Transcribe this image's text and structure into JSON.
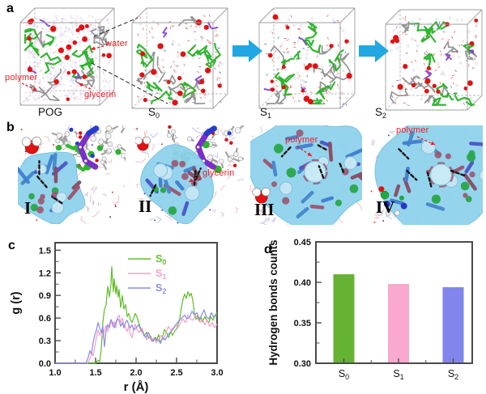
{
  "figure": {
    "panels": {
      "a": {
        "label": "a",
        "boxes": [
          {
            "base": "POG",
            "sub": ""
          },
          {
            "base": "S",
            "sub": "0"
          },
          {
            "base": "S",
            "sub": "1"
          },
          {
            "base": "S",
            "sub": "2"
          }
        ],
        "annotations": {
          "water": "water",
          "polymer": "polymer",
          "glycerin": "glycerin"
        },
        "arrow_color": "#22a7e3"
      },
      "b": {
        "label": "b",
        "views": [
          {
            "numeral": "I",
            "annotation": ""
          },
          {
            "numeral": "II",
            "annotation": "glycerin"
          },
          {
            "numeral": "III",
            "annotation": "polymer"
          },
          {
            "numeral": "IV",
            "annotation": "polymer"
          }
        ]
      },
      "c": {
        "label": "c"
      },
      "d": {
        "label": "d"
      }
    }
  },
  "chart_data": [
    {
      "type": "line",
      "panel": "c",
      "title": "",
      "xlabel": "r (Å)",
      "ylabel": "g (r)",
      "xlim": [
        1.0,
        3.0
      ],
      "ylim": [
        0.0,
        1.6
      ],
      "xticks": [
        1.0,
        1.5,
        2.0,
        2.5,
        3.0
      ],
      "xticklabels": [
        "1.0",
        "1.5",
        "2.0",
        "2.5",
        "3.0"
      ],
      "yticks": [
        0.0,
        0.3,
        0.6,
        0.9,
        1.2,
        1.5
      ],
      "yticklabels": [
        "0.0",
        "0.3",
        "0.6",
        "0.9",
        "1.2",
        "1.5"
      ],
      "grid": false,
      "legend_position": "top-center",
      "series": [
        {
          "name": "S0",
          "label_base": "S",
          "label_sub": "0",
          "color": "#63bf2d",
          "points": [
            [
              1.0,
              0
            ],
            [
              1.4,
              0
            ],
            [
              1.5,
              0
            ],
            [
              1.53,
              0.04
            ],
            [
              1.55,
              0.02
            ],
            [
              1.57,
              0.18
            ],
            [
              1.59,
              0.55
            ],
            [
              1.61,
              0.72
            ],
            [
              1.63,
              0.78
            ],
            [
              1.65,
              1.02
            ],
            [
              1.67,
              0.88
            ],
            [
              1.69,
              1.06
            ],
            [
              1.7,
              1.28
            ],
            [
              1.71,
              1.1
            ],
            [
              1.72,
              0.95
            ],
            [
              1.73,
              1.12
            ],
            [
              1.75,
              0.92
            ],
            [
              1.76,
              1.03
            ],
            [
              1.78,
              0.88
            ],
            [
              1.79,
              0.98
            ],
            [
              1.81,
              0.74
            ],
            [
              1.83,
              0.9
            ],
            [
              1.85,
              0.72
            ],
            [
              1.87,
              0.78
            ],
            [
              1.89,
              0.62
            ],
            [
              1.91,
              0.66
            ],
            [
              1.93,
              0.58
            ],
            [
              1.95,
              0.54
            ],
            [
              1.97,
              0.6
            ],
            [
              1.99,
              0.66
            ],
            [
              2.01,
              0.62
            ],
            [
              2.03,
              0.55
            ],
            [
              2.05,
              0.48
            ],
            [
              2.08,
              0.42
            ],
            [
              2.1,
              0.36
            ],
            [
              2.13,
              0.41
            ],
            [
              2.15,
              0.33
            ],
            [
              2.18,
              0.36
            ],
            [
              2.2,
              0.29
            ],
            [
              2.23,
              0.34
            ],
            [
              2.25,
              0.3
            ],
            [
              2.28,
              0.38
            ],
            [
              2.3,
              0.26
            ],
            [
              2.33,
              0.36
            ],
            [
              2.35,
              0.45
            ],
            [
              2.38,
              0.4
            ],
            [
              2.4,
              0.34
            ],
            [
              2.43,
              0.42
            ],
            [
              2.45,
              0.37
            ],
            [
              2.48,
              0.43
            ],
            [
              2.5,
              0.46
            ],
            [
              2.52,
              0.52
            ],
            [
              2.54,
              0.6
            ],
            [
              2.56,
              0.75
            ],
            [
              2.58,
              0.85
            ],
            [
              2.6,
              0.92
            ],
            [
              2.62,
              0.86
            ],
            [
              2.64,
              0.95
            ],
            [
              2.66,
              0.89
            ],
            [
              2.68,
              0.93
            ],
            [
              2.7,
              0.84
            ],
            [
              2.72,
              0.66
            ],
            [
              2.74,
              0.58
            ],
            [
              2.76,
              0.63
            ],
            [
              2.78,
              0.56
            ],
            [
              2.8,
              0.61
            ],
            [
              2.82,
              0.55
            ],
            [
              2.85,
              0.62
            ],
            [
              2.87,
              0.57
            ],
            [
              2.9,
              0.54
            ],
            [
              2.92,
              0.62
            ],
            [
              2.95,
              0.57
            ],
            [
              2.97,
              0.63
            ],
            [
              3.0,
              0.67
            ]
          ]
        },
        {
          "name": "S1",
          "label_base": "S",
          "label_sub": "1",
          "color": "#f8a0ca",
          "points": [
            [
              1.0,
              0
            ],
            [
              1.4,
              0
            ],
            [
              1.43,
              0.06
            ],
            [
              1.45,
              0.13
            ],
            [
              1.47,
              0.1
            ],
            [
              1.49,
              0.22
            ],
            [
              1.51,
              0.34
            ],
            [
              1.53,
              0.44
            ],
            [
              1.55,
              0.37
            ],
            [
              1.57,
              0.42
            ],
            [
              1.59,
              0.34
            ],
            [
              1.61,
              0.44
            ],
            [
              1.63,
              0.5
            ],
            [
              1.65,
              0.42
            ],
            [
              1.67,
              0.52
            ],
            [
              1.69,
              0.57
            ],
            [
              1.71,
              0.49
            ],
            [
              1.73,
              0.55
            ],
            [
              1.75,
              0.47
            ],
            [
              1.77,
              0.61
            ],
            [
              1.79,
              0.64
            ],
            [
              1.81,
              0.54
            ],
            [
              1.83,
              0.6
            ],
            [
              1.85,
              0.51
            ],
            [
              1.87,
              0.47
            ],
            [
              1.89,
              0.42
            ],
            [
              1.91,
              0.5
            ],
            [
              1.93,
              0.38
            ],
            [
              1.95,
              0.34
            ],
            [
              1.97,
              0.44
            ],
            [
              1.99,
              0.52
            ],
            [
              2.01,
              0.45
            ],
            [
              2.04,
              0.41
            ],
            [
              2.07,
              0.47
            ],
            [
              2.1,
              0.39
            ],
            [
              2.13,
              0.31
            ],
            [
              2.16,
              0.37
            ],
            [
              2.19,
              0.29
            ],
            [
              2.22,
              0.34
            ],
            [
              2.25,
              0.27
            ],
            [
              2.28,
              0.32
            ],
            [
              2.31,
              0.37
            ],
            [
              2.34,
              0.31
            ],
            [
              2.37,
              0.41
            ],
            [
              2.4,
              0.49
            ],
            [
              2.43,
              0.44
            ],
            [
              2.46,
              0.47
            ],
            [
              2.49,
              0.51
            ],
            [
              2.52,
              0.47
            ],
            [
              2.55,
              0.54
            ],
            [
              2.58,
              0.59
            ],
            [
              2.61,
              0.54
            ],
            [
              2.64,
              0.64
            ],
            [
              2.67,
              0.59
            ],
            [
              2.7,
              0.57
            ],
            [
              2.73,
              0.64
            ],
            [
              2.76,
              0.59
            ],
            [
              2.79,
              0.54
            ],
            [
              2.82,
              0.59
            ],
            [
              2.85,
              0.51
            ],
            [
              2.88,
              0.57
            ],
            [
              2.91,
              0.49
            ],
            [
              2.94,
              0.54
            ],
            [
              2.97,
              0.47
            ],
            [
              3.0,
              0.52
            ]
          ]
        },
        {
          "name": "S2",
          "label_base": "S",
          "label_sub": "2",
          "color": "#8a8fe8",
          "points": [
            [
              1.0,
              0
            ],
            [
              1.38,
              0
            ],
            [
              1.41,
              0.08
            ],
            [
              1.43,
              0.17
            ],
            [
              1.45,
              0.12
            ],
            [
              1.47,
              0.28
            ],
            [
              1.49,
              0.37
            ],
            [
              1.51,
              0.44
            ],
            [
              1.53,
              0.54
            ],
            [
              1.55,
              0.47
            ],
            [
              1.57,
              0.41
            ],
            [
              1.59,
              0.49
            ],
            [
              1.61,
              0.22
            ],
            [
              1.63,
              0.44
            ],
            [
              1.65,
              0.51
            ],
            [
              1.67,
              0.47
            ],
            [
              1.69,
              0.58
            ],
            [
              1.71,
              0.54
            ],
            [
              1.73,
              0.47
            ],
            [
              1.75,
              0.54
            ],
            [
              1.77,
              0.59
            ],
            [
              1.79,
              0.57
            ],
            [
              1.81,
              0.49
            ],
            [
              1.83,
              0.54
            ],
            [
              1.85,
              0.47
            ],
            [
              1.87,
              0.54
            ],
            [
              1.89,
              0.57
            ],
            [
              1.91,
              0.51
            ],
            [
              1.93,
              0.47
            ],
            [
              1.95,
              0.51
            ],
            [
              1.97,
              0.44
            ],
            [
              2.0,
              0.47
            ],
            [
              2.03,
              0.51
            ],
            [
              2.06,
              0.44
            ],
            [
              2.09,
              0.39
            ],
            [
              2.12,
              0.34
            ],
            [
              2.15,
              0.41
            ],
            [
              2.18,
              0.34
            ],
            [
              2.21,
              0.29
            ],
            [
              2.24,
              0.34
            ],
            [
              2.27,
              0.31
            ],
            [
              2.3,
              0.27
            ],
            [
              2.33,
              0.34
            ],
            [
              2.36,
              0.31
            ],
            [
              2.39,
              0.37
            ],
            [
              2.42,
              0.41
            ],
            [
              2.45,
              0.44
            ],
            [
              2.48,
              0.49
            ],
            [
              2.51,
              0.54
            ],
            [
              2.54,
              0.57
            ],
            [
              2.57,
              0.61
            ],
            [
              2.6,
              0.64
            ],
            [
              2.63,
              0.59
            ],
            [
              2.66,
              0.61
            ],
            [
              2.69,
              0.69
            ],
            [
              2.72,
              0.64
            ],
            [
              2.75,
              0.67
            ],
            [
              2.78,
              0.59
            ],
            [
              2.81,
              0.64
            ],
            [
              2.84,
              0.71
            ],
            [
              2.87,
              0.61
            ],
            [
              2.9,
              0.59
            ],
            [
              2.93,
              0.67
            ],
            [
              2.96,
              0.61
            ],
            [
              3.0,
              0.64
            ]
          ]
        }
      ]
    },
    {
      "type": "bar",
      "panel": "d",
      "title": "",
      "xlabel": "",
      "ylabel": "Hydrogen bonds counts",
      "ylim": [
        0.3,
        0.45
      ],
      "yticks": [
        0.3,
        0.35,
        0.4,
        0.45
      ],
      "yticklabels": [
        "0.30",
        "0.35",
        "0.40",
        "0.45"
      ],
      "grid": false,
      "categories": [
        {
          "name": "S0",
          "base": "S",
          "sub": "0"
        },
        {
          "name": "S1",
          "base": "S",
          "sub": "1"
        },
        {
          "name": "S2",
          "base": "S",
          "sub": "2"
        }
      ],
      "values": [
        0.41,
        0.398,
        0.394
      ],
      "colors": [
        "#66b232",
        "#f9a8ce",
        "#8286ec"
      ]
    }
  ]
}
